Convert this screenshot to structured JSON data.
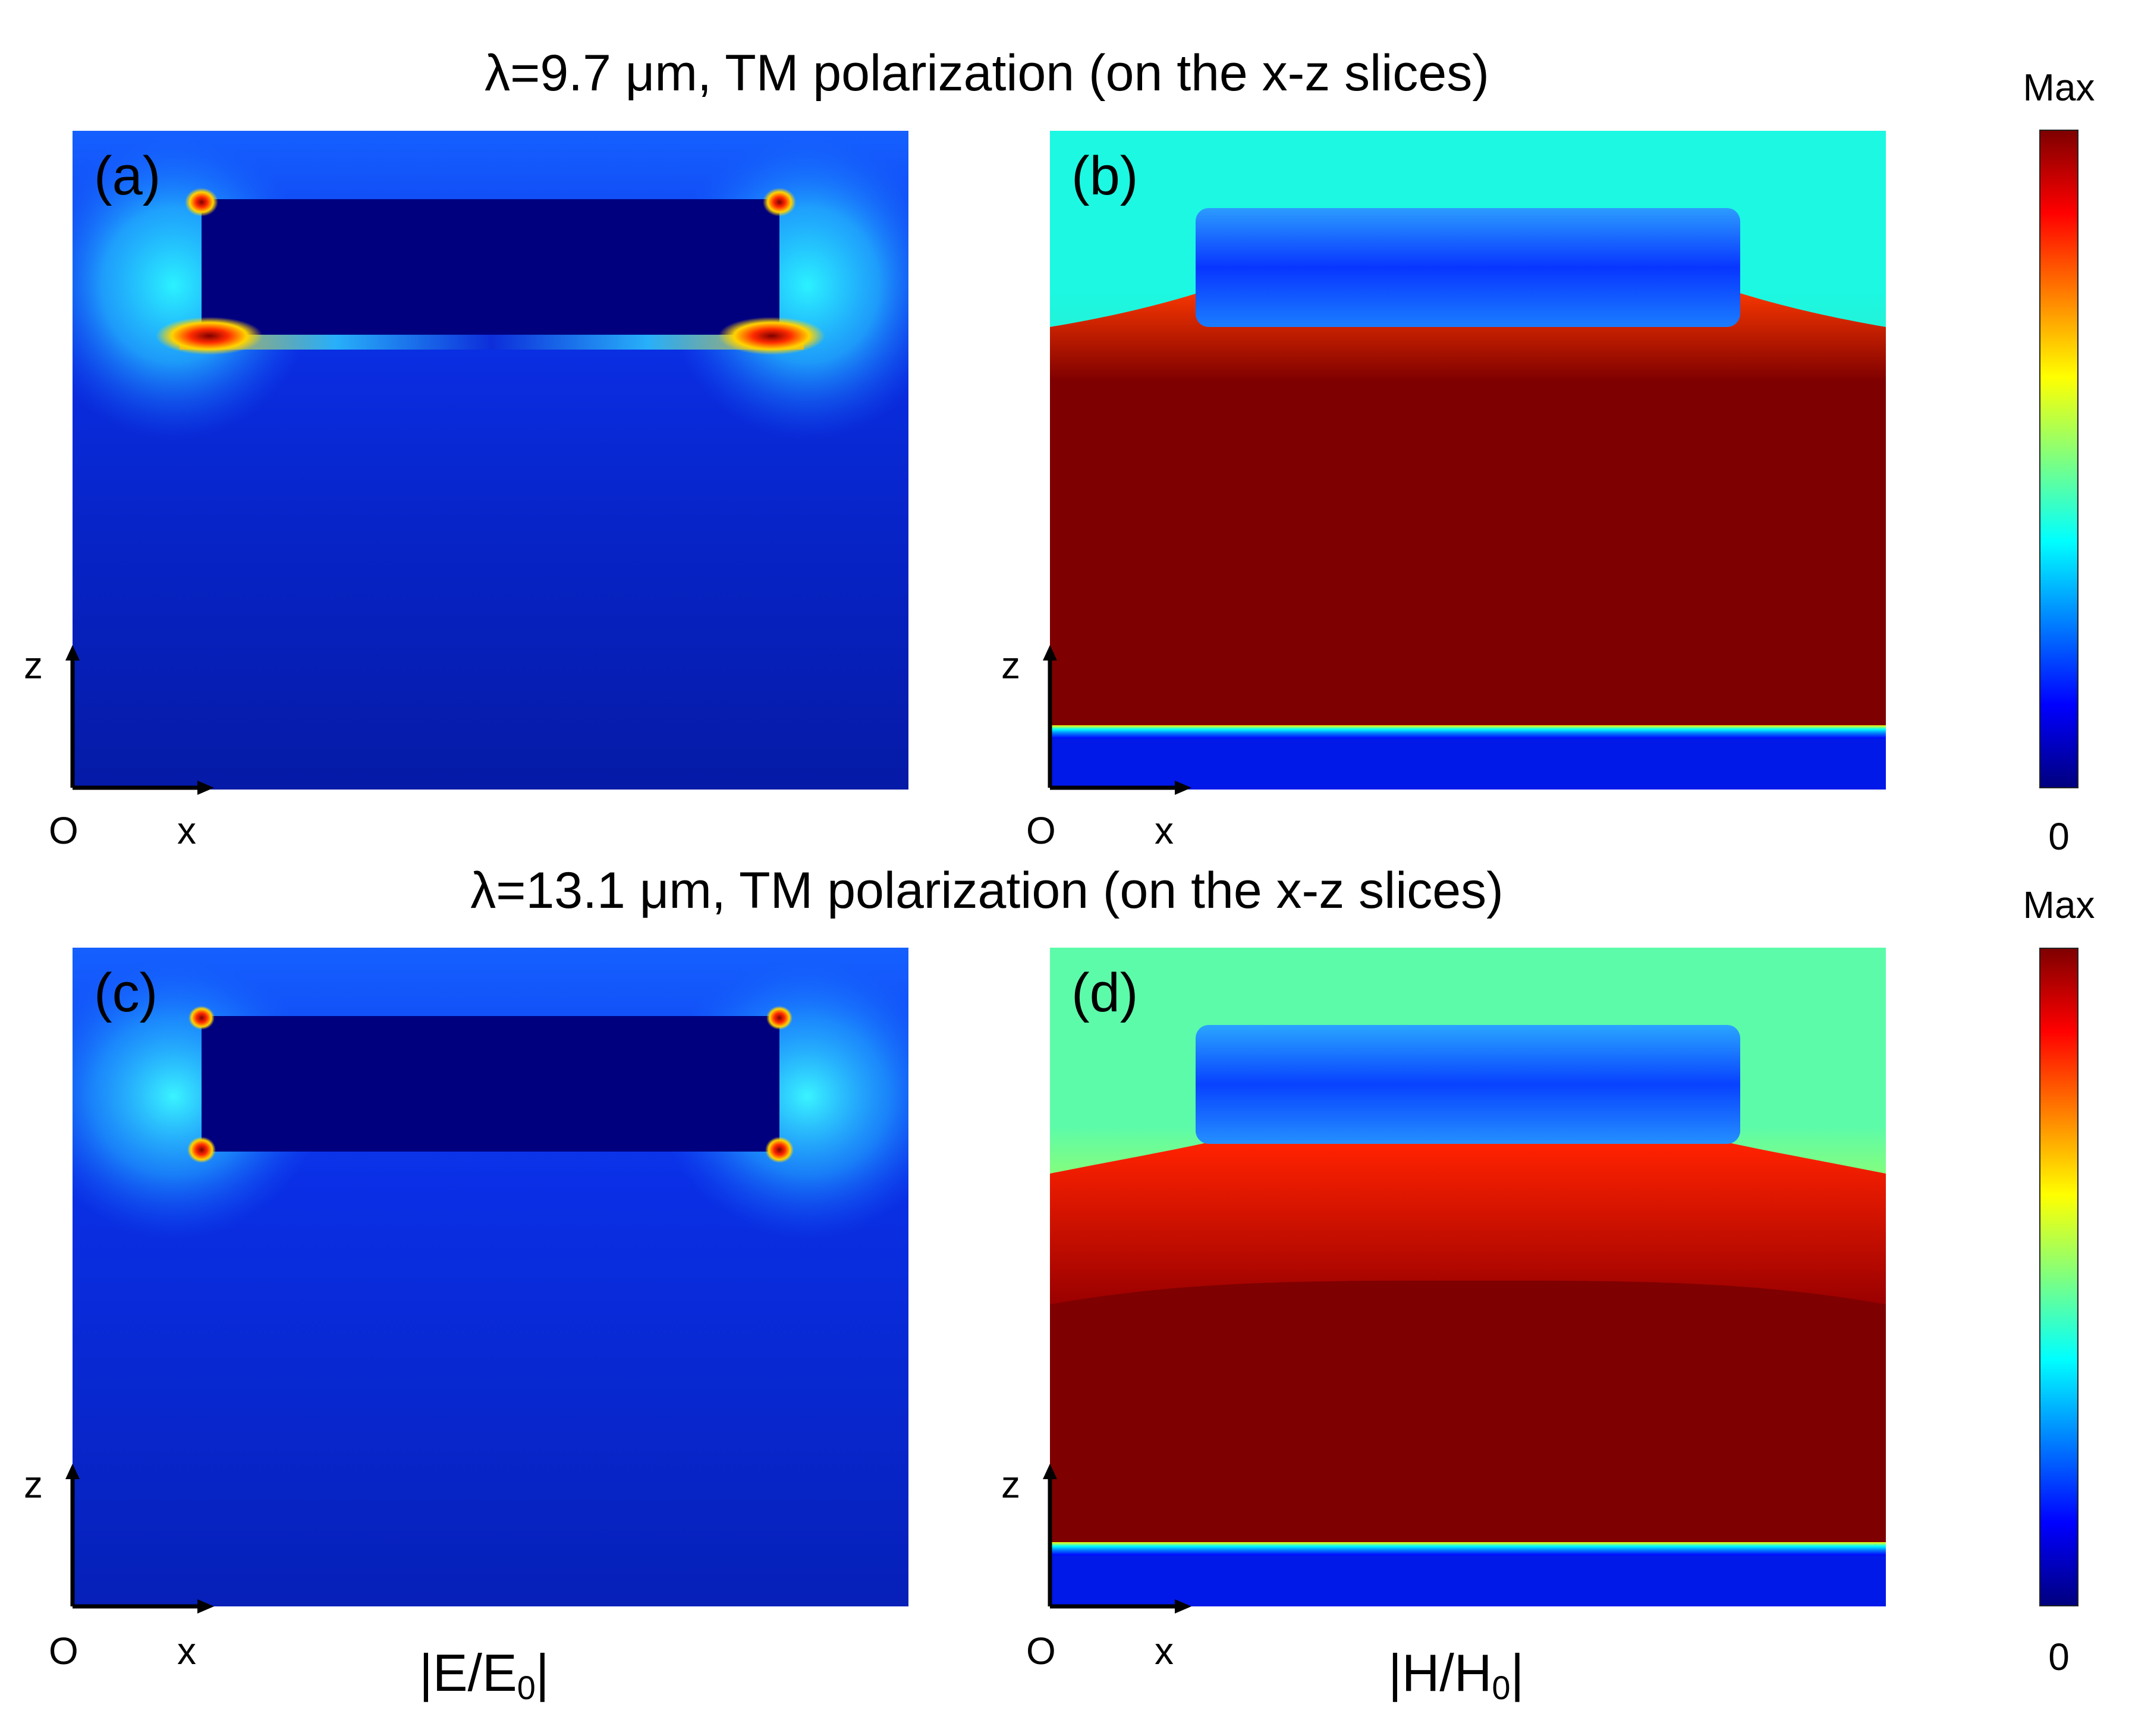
{
  "rows": [
    {
      "title": "λ=9.7 μm, TM polarization (on the x-z slices)"
    },
    {
      "title": "λ=13.1 μm, TM polarization (on the x-z slices)"
    }
  ],
  "panels": [
    {
      "label": "(a)",
      "field": "E"
    },
    {
      "label": "(b)",
      "field": "H"
    },
    {
      "label": "(c)",
      "field": "E"
    },
    {
      "label": "(d)",
      "field": "H"
    }
  ],
  "axes": {
    "vertical": "z",
    "horizontal": "x",
    "origin": "O"
  },
  "quantities": {
    "left": {
      "main": "|E/E",
      "sub": "0",
      "end": "|"
    },
    "right": {
      "main": "|H/H",
      "sub": "0",
      "end": "|"
    }
  },
  "colorbar": {
    "max_label": "Max",
    "min_label": "0",
    "colormap": "jet",
    "stops": [
      "#00007f",
      "#0000ff",
      "#007fff",
      "#00ffff",
      "#7fff7f",
      "#ffff00",
      "#ff7f00",
      "#ff0000",
      "#7f0000"
    ]
  }
}
